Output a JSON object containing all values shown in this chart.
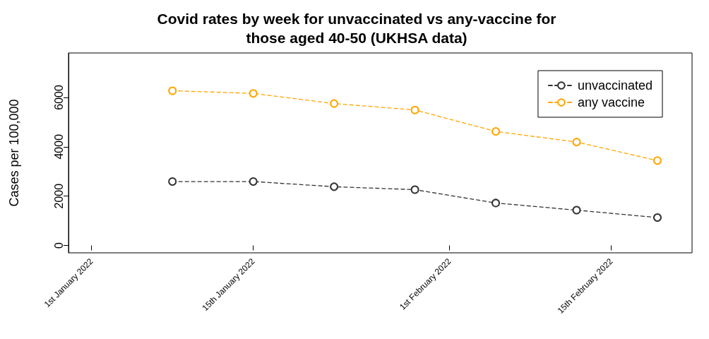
{
  "chart_data": {
    "type": "line",
    "title": "Covid rates by week for unvaccinated vs any-vaccine for\nthose aged 40-50 (UKHSA data)",
    "ylabel": "Cases per 100,000",
    "x": [
      "2022-01-08",
      "2022-01-15",
      "2022-01-22",
      "2022-01-29",
      "2022-02-05",
      "2022-02-12",
      "2022-02-19"
    ],
    "series": [
      {
        "name": "unvaccinated",
        "color": "#333333",
        "values": [
          2590,
          2590,
          2380,
          2260,
          1720,
          1430,
          1130
        ]
      },
      {
        "name": "any vaccine",
        "color": "#ffa500",
        "values": [
          6270,
          6160,
          5750,
          5490,
          4620,
          4190,
          3440
        ]
      }
    ],
    "xlim": [
      "2021-12-30",
      "2022-02-22"
    ],
    "xticks": [
      {
        "value": "2022-01-01",
        "label": "1st January 2022"
      },
      {
        "value": "2022-01-15",
        "label": "15th January 2022"
      },
      {
        "value": "2022-02-01",
        "label": "1st February 2022"
      },
      {
        "value": "2022-02-15",
        "label": "15th February 2022"
      }
    ],
    "ylim": [
      -300,
      7800
    ],
    "yticks": [
      0,
      2000,
      4000,
      6000
    ],
    "grid": false,
    "legend": "top right",
    "marker": "circle",
    "line_style": "dashed"
  }
}
